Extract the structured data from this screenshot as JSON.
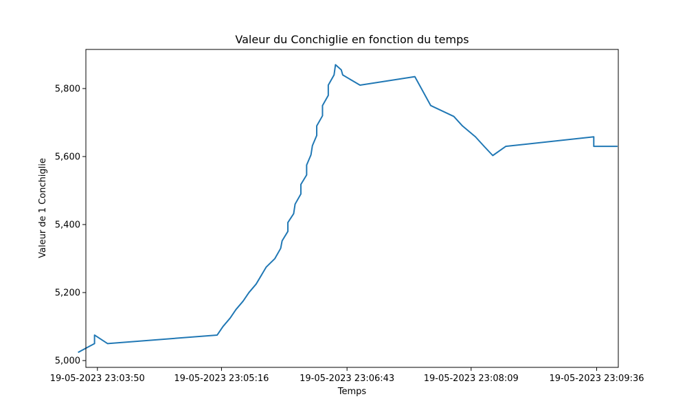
{
  "chart_data": {
    "type": "line",
    "title": "Valeur du Conchiglie en fonction du temps",
    "xlabel": "Temps",
    "ylabel": "Valeur de 1 Conchiglie",
    "grid": false,
    "legend": "none",
    "line_color": "#1f77b4",
    "x_range": [
      "19-05-2023 23:03:42",
      "19-05-2023 23:09:51"
    ],
    "ylim": [
      4980,
      5915
    ],
    "x_ticks": [
      "19-05-2023 23:03:50",
      "19-05-2023 23:05:16",
      "19-05-2023 23:06:43",
      "19-05-2023 23:08:09",
      "19-05-2023 23:09:36"
    ],
    "y_ticks": [
      "5,000",
      "5,200",
      "5,400",
      "5,600",
      "5,800"
    ],
    "y_tick_values": [
      5000,
      5200,
      5400,
      5600,
      5800
    ],
    "series": [
      {
        "x": [
          "19-05-2023 23:03:37",
          "19-05-2023 23:03:48",
          "19-05-2023 23:03:48",
          "19-05-2023 23:03:57",
          "19-05-2023 23:05:13",
          "19-05-2023 23:05:17",
          "19-05-2023 23:05:22",
          "19-05-2023 23:05:26",
          "19-05-2023 23:05:31",
          "19-05-2023 23:05:35",
          "19-05-2023 23:05:40",
          "19-05-2023 23:05:47",
          "19-05-2023 23:05:53",
          "19-05-2023 23:05:57",
          "19-05-2023 23:05:58",
          "19-05-2023 23:06:02",
          "19-05-2023 23:06:02",
          "19-05-2023 23:06:06",
          "19-05-2023 23:06:07",
          "19-05-2023 23:06:11",
          "19-05-2023 23:06:11",
          "19-05-2023 23:06:15",
          "19-05-2023 23:06:15",
          "19-05-2023 23:06:18",
          "19-05-2023 23:06:19",
          "19-05-2023 23:06:22",
          "19-05-2023 23:06:22",
          "19-05-2023 23:06:26",
          "19-05-2023 23:06:26",
          "19-05-2023 23:06:30",
          "19-05-2023 23:06:30",
          "19-05-2023 23:06:34",
          "19-05-2023 23:06:35",
          "19-05-2023 23:06:39",
          "19-05-2023 23:06:40",
          "19-05-2023 23:06:52",
          "19-05-2023 23:07:30",
          "19-05-2023 23:07:41",
          "19-05-2023 23:07:57",
          "19-05-2023 23:08:03",
          "19-05-2023 23:08:12",
          "19-05-2023 23:08:18",
          "19-05-2023 23:08:24",
          "19-05-2023 23:08:33",
          "19-05-2023 23:09:34",
          "19-05-2023 23:09:34",
          "19-05-2023 23:09:50"
        ],
        "y": [
          5025,
          5050,
          5075,
          5050,
          5075,
          5100,
          5125,
          5150,
          5175,
          5200,
          5225,
          5275,
          5300,
          5330,
          5352,
          5380,
          5406,
          5432,
          5460,
          5490,
          5518,
          5546,
          5575,
          5605,
          5632,
          5662,
          5690,
          5720,
          5750,
          5780,
          5810,
          5840,
          5870,
          5855,
          5840,
          5810,
          5835,
          5750,
          5718,
          5690,
          5658,
          5630,
          5603,
          5630,
          5658,
          5630,
          5630
        ]
      }
    ]
  }
}
